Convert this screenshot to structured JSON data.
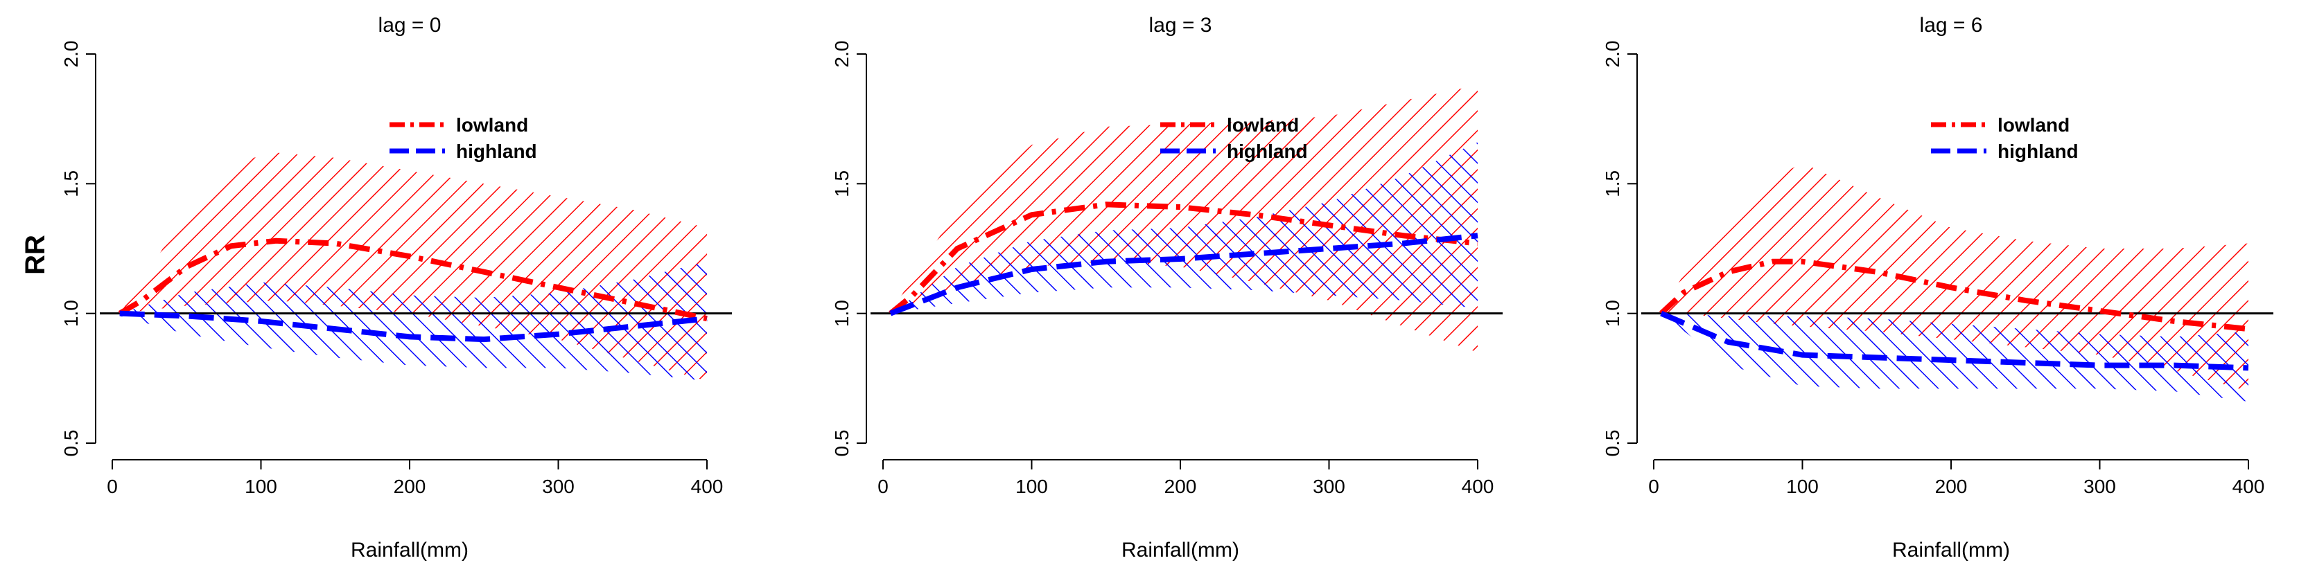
{
  "figure": {
    "ylabel_shared": "RR"
  },
  "chart_data": [
    {
      "type": "line",
      "title": "lag = 0",
      "xlabel": "Rainfall(mm)",
      "ylabel": "RR",
      "xlim": [
        0,
        400
      ],
      "ylim": [
        0.5,
        2.0
      ],
      "xticks": [
        0,
        100,
        200,
        300,
        400
      ],
      "yticks": [
        0.5,
        1.0,
        1.5,
        2.0
      ],
      "reference_line": 1.0,
      "legend": {
        "position": "top-center",
        "entries": [
          "lowland",
          "highland"
        ]
      },
      "series": [
        {
          "name": "lowland",
          "color": "#ff0000",
          "style": "dash-dot",
          "x": [
            5,
            20,
            50,
            80,
            110,
            150,
            200,
            250,
            300,
            350,
            400
          ],
          "y": [
            1.0,
            1.05,
            1.18,
            1.26,
            1.28,
            1.27,
            1.22,
            1.16,
            1.1,
            1.04,
            0.98
          ],
          "ci_low": [
            1.0,
            1.01,
            1.03,
            1.04,
            1.05,
            1.03,
            1.0,
            0.95,
            0.9,
            0.82,
            0.74
          ],
          "ci_high": [
            1.0,
            1.12,
            1.4,
            1.58,
            1.62,
            1.6,
            1.55,
            1.5,
            1.45,
            1.4,
            1.33
          ]
        },
        {
          "name": "highland",
          "color": "#0000ff",
          "style": "dash",
          "x": [
            5,
            50,
            100,
            150,
            200,
            250,
            300,
            350,
            400
          ],
          "y": [
            1.0,
            0.99,
            0.97,
            0.94,
            0.91,
            0.9,
            0.92,
            0.95,
            0.98
          ],
          "ci_low": [
            0.99,
            0.92,
            0.87,
            0.83,
            0.8,
            0.79,
            0.79,
            0.77,
            0.74
          ],
          "ci_high": [
            1.0,
            1.08,
            1.12,
            1.1,
            1.07,
            1.06,
            1.08,
            1.13,
            1.2
          ]
        }
      ]
    },
    {
      "type": "line",
      "title": "lag = 3",
      "xlabel": "Rainfall(mm)",
      "ylabel": "",
      "xlim": [
        0,
        400
      ],
      "ylim": [
        0.5,
        2.0
      ],
      "xticks": [
        0,
        100,
        200,
        300,
        400
      ],
      "yticks": [
        0.5,
        1.0,
        1.5,
        2.0
      ],
      "reference_line": 1.0,
      "legend": {
        "position": "top-center",
        "entries": [
          "lowland",
          "highland"
        ]
      },
      "series": [
        {
          "name": "lowland",
          "color": "#ff0000",
          "style": "dash-dot",
          "x": [
            5,
            20,
            50,
            100,
            150,
            200,
            250,
            300,
            350,
            400
          ],
          "y": [
            1.0,
            1.07,
            1.25,
            1.38,
            1.42,
            1.41,
            1.38,
            1.34,
            1.3,
            1.27
          ],
          "ci_low": [
            1.0,
            1.02,
            1.1,
            1.18,
            1.2,
            1.18,
            1.12,
            1.05,
            0.95,
            0.85
          ],
          "ci_high": [
            1.0,
            1.14,
            1.4,
            1.65,
            1.72,
            1.73,
            1.74,
            1.76,
            1.82,
            1.88
          ]
        },
        {
          "name": "highland",
          "color": "#0000ff",
          "style": "dash",
          "x": [
            5,
            50,
            100,
            150,
            200,
            250,
            300,
            350,
            400
          ],
          "y": [
            1.0,
            1.1,
            1.17,
            1.2,
            1.21,
            1.23,
            1.25,
            1.27,
            1.3
          ],
          "ci_low": [
            1.0,
            1.04,
            1.08,
            1.1,
            1.1,
            1.09,
            1.07,
            1.05,
            1.02
          ],
          "ci_high": [
            1.0,
            1.18,
            1.28,
            1.32,
            1.33,
            1.37,
            1.43,
            1.53,
            1.66
          ]
        }
      ]
    },
    {
      "type": "line",
      "title": "lag = 6",
      "xlabel": "Rainfall(mm)",
      "ylabel": "",
      "xlim": [
        0,
        400
      ],
      "ylim": [
        0.5,
        2.0
      ],
      "xticks": [
        0,
        100,
        200,
        300,
        400
      ],
      "yticks": [
        0.5,
        1.0,
        1.5,
        2.0
      ],
      "reference_line": 1.0,
      "legend": {
        "position": "top-center",
        "entries": [
          "lowland",
          "highland"
        ]
      },
      "series": [
        {
          "name": "lowland",
          "color": "#ff0000",
          "style": "dash-dot",
          "x": [
            5,
            20,
            50,
            80,
            100,
            150,
            200,
            250,
            300,
            350,
            400
          ],
          "y": [
            1.0,
            1.08,
            1.16,
            1.2,
            1.2,
            1.16,
            1.1,
            1.05,
            1.01,
            0.97,
            0.94
          ],
          "ci_low": [
            1.0,
            1.0,
            0.98,
            0.96,
            0.95,
            0.93,
            0.9,
            0.87,
            0.84,
            0.78,
            0.7
          ],
          "ci_high": [
            1.0,
            1.15,
            1.38,
            1.52,
            1.58,
            1.45,
            1.33,
            1.28,
            1.25,
            1.25,
            1.27
          ]
        },
        {
          "name": "highland",
          "color": "#0000ff",
          "style": "dash",
          "x": [
            5,
            50,
            100,
            150,
            200,
            250,
            300,
            350,
            400
          ],
          "y": [
            1.0,
            0.89,
            0.84,
            0.83,
            0.82,
            0.81,
            0.8,
            0.8,
            0.79
          ],
          "ci_low": [
            1.0,
            0.8,
            0.72,
            0.71,
            0.71,
            0.71,
            0.71,
            0.7,
            0.66
          ],
          "ci_high": [
            1.0,
            0.99,
            0.99,
            0.98,
            0.96,
            0.94,
            0.92,
            0.91,
            0.93
          ]
        }
      ]
    }
  ]
}
